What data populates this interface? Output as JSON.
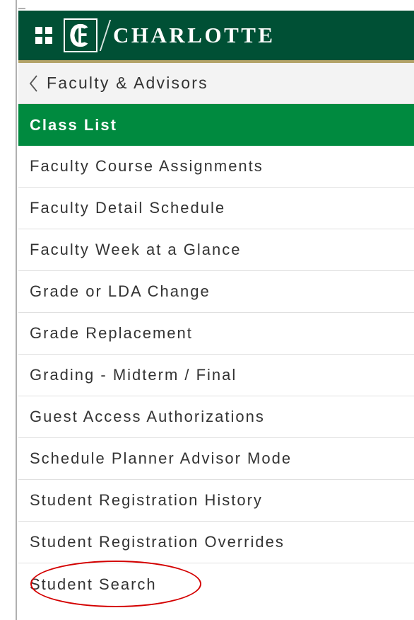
{
  "header": {
    "brand_text": "CHARLOTTE",
    "header_bg": "#005035",
    "gold_accent": "#b3a369"
  },
  "breadcrumb": {
    "label": "Faculty & Advisors"
  },
  "menu": {
    "items": [
      {
        "label": "Class List",
        "selected": true,
        "highlighted": false
      },
      {
        "label": "Faculty Course Assignments",
        "selected": false,
        "highlighted": false
      },
      {
        "label": "Faculty Detail Schedule",
        "selected": false,
        "highlighted": false
      },
      {
        "label": "Faculty Week at a Glance",
        "selected": false,
        "highlighted": false
      },
      {
        "label": "Grade or LDA Change",
        "selected": false,
        "highlighted": false
      },
      {
        "label": "Grade Replacement",
        "selected": false,
        "highlighted": false
      },
      {
        "label": "Grading - Midterm / Final",
        "selected": false,
        "highlighted": false
      },
      {
        "label": "Guest Access Authorizations",
        "selected": false,
        "highlighted": false
      },
      {
        "label": "Schedule Planner Advisor Mode",
        "selected": false,
        "highlighted": false
      },
      {
        "label": "Student Registration History",
        "selected": false,
        "highlighted": false
      },
      {
        "label": "Student Registration Overrides",
        "selected": false,
        "highlighted": false
      },
      {
        "label": "Student Search",
        "selected": false,
        "highlighted": true
      }
    ],
    "selected_bg": "#008a3f",
    "highlight_color": "#d40000"
  }
}
